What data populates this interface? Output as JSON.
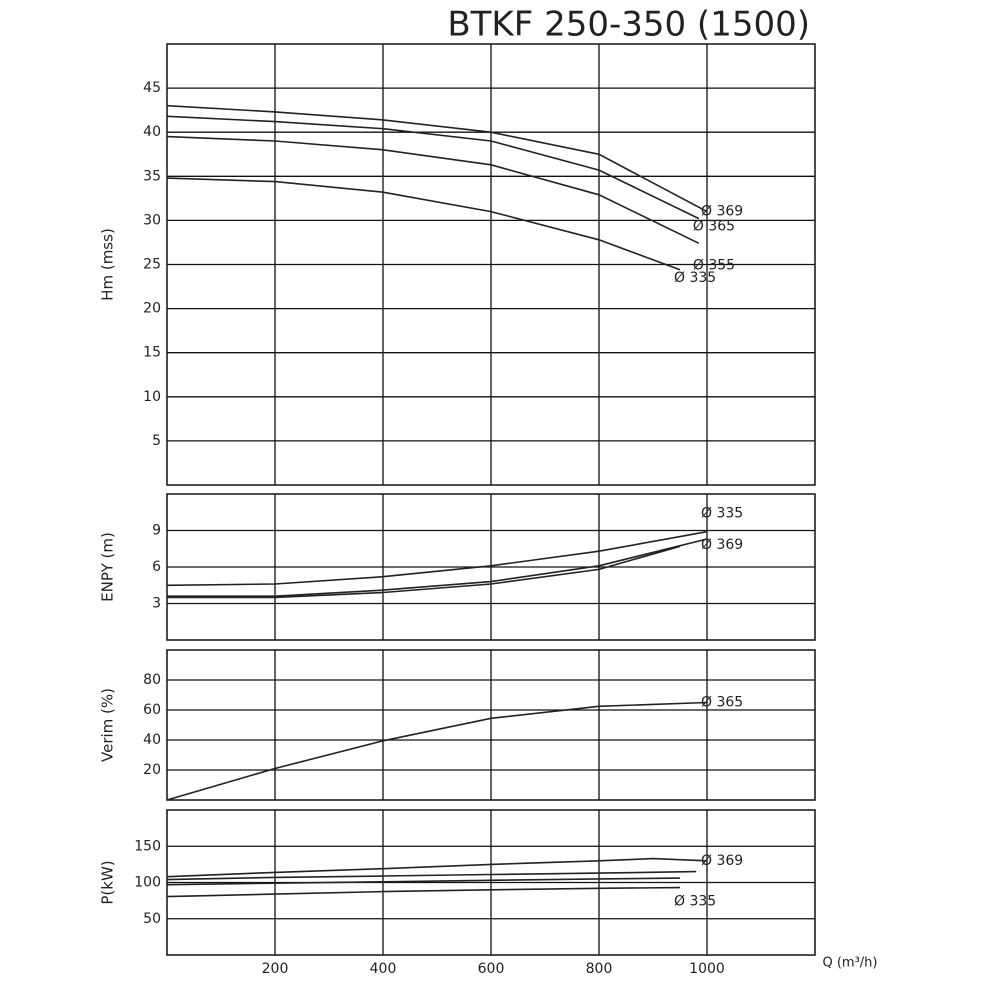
{
  "chart_data": [
    {
      "type": "line",
      "title": "BTKF 250-350 (1500)",
      "ylabel": "Hm (mss)",
      "color": "#222",
      "grid": true,
      "xlim": [
        0,
        1200
      ],
      "ylim": [
        0,
        50
      ],
      "yticks": [
        5,
        10,
        15,
        20,
        25,
        30,
        35,
        40,
        45
      ],
      "series": [
        {
          "name": "Ø 369",
          "x": [
            0,
            200,
            400,
            600,
            800,
            1000
          ],
          "values": [
            43,
            42.3,
            41.4,
            40,
            37.5,
            31
          ]
        },
        {
          "name": "Ø 365",
          "x": [
            0,
            200,
            400,
            600,
            800,
            985
          ],
          "values": [
            41.8,
            41.2,
            40.4,
            39,
            35.7,
            30.2
          ]
        },
        {
          "name": "Ø 355",
          "x": [
            0,
            200,
            400,
            600,
            800,
            985
          ],
          "values": [
            39.5,
            39,
            38,
            36.3,
            32.9,
            27.4
          ]
        },
        {
          "name": "Ø 335",
          "x": [
            0,
            200,
            400,
            600,
            800,
            950
          ],
          "values": [
            34.8,
            34.4,
            33.2,
            31,
            27.8,
            24.4
          ]
        }
      ]
    },
    {
      "type": "line",
      "ylabel": "ENPY (m)",
      "color": "#222",
      "grid": true,
      "xlim": [
        0,
        1200
      ],
      "ylim": [
        0,
        12
      ],
      "yticks": [
        3,
        6,
        9
      ],
      "series": [
        {
          "name": "Ø 335",
          "x": [
            0,
            200,
            400,
            600,
            800,
            1000
          ],
          "values": [
            4.5,
            4.6,
            5.2,
            6.1,
            7.3,
            8.9
          ]
        },
        {
          "name": "Ø 369",
          "x": [
            0,
            200,
            400,
            600,
            800,
            1000
          ],
          "values": [
            3.6,
            3.6,
            4.1,
            4.8,
            6.1,
            8.3
          ]
        },
        {
          "x": [
            0,
            200,
            400,
            600,
            800,
            950
          ],
          "values": [
            3.5,
            3.5,
            3.9,
            4.6,
            5.8,
            7.7
          ]
        }
      ]
    },
    {
      "type": "line",
      "ylabel": "Verim (%)",
      "color": "#222",
      "grid": true,
      "xlim": [
        0,
        1200
      ],
      "ylim": [
        0,
        100
      ],
      "yticks": [
        20,
        40,
        60,
        80
      ],
      "series": [
        {
          "name": "Ø 365",
          "x": [
            0,
            200,
            400,
            600,
            800,
            1000
          ],
          "values": [
            0,
            21,
            39.5,
            54.5,
            62.5,
            65
          ]
        }
      ]
    },
    {
      "type": "line",
      "ylabel": "P(kW)",
      "xlabel": "Q (m³/h)",
      "color": "#222",
      "grid": true,
      "xlim": [
        0,
        1200
      ],
      "ylim": [
        0,
        200
      ],
      "yticks": [
        50,
        100,
        150
      ],
      "xticks": [
        200,
        400,
        600,
        800,
        1000
      ],
      "series": [
        {
          "name": "Ø 369",
          "x": [
            0,
            200,
            400,
            600,
            800,
            900,
            1000
          ],
          "values": [
            108,
            114,
            119,
            125,
            130,
            133,
            130
          ]
        },
        {
          "x": [
            0,
            200,
            400,
            600,
            800,
            980
          ],
          "values": [
            104,
            107,
            109,
            111,
            113,
            115
          ]
        },
        {
          "x": [
            0,
            200,
            400,
            600,
            800,
            950
          ],
          "values": [
            97,
            99,
            101,
            103,
            105,
            106
          ]
        },
        {
          "name": "Ø 335",
          "x": [
            0,
            200,
            400,
            600,
            800,
            950
          ],
          "values": [
            80.5,
            84,
            87.5,
            90,
            92,
            93
          ]
        }
      ]
    }
  ]
}
